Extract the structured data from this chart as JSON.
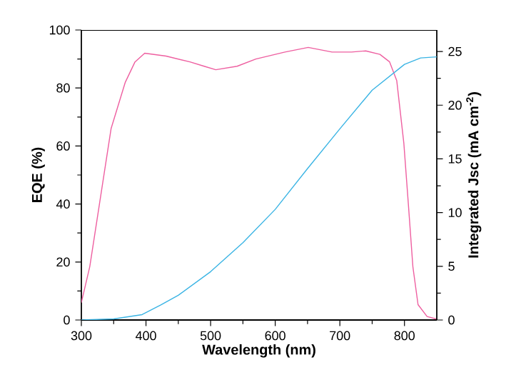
{
  "chart_data": {
    "type": "line",
    "xlabel": "Wavelength (nm)",
    "ylabel": "EQE (%)",
    "y2label": "Integrated Jsc (mA cm$^{-2}$)",
    "xlim": [
      300,
      850
    ],
    "xticks": [
      300,
      400,
      500,
      600,
      700,
      800
    ],
    "ylim": [
      0,
      100
    ],
    "yticks": [
      0,
      20,
      40,
      60,
      80,
      100
    ],
    "y2lim": [
      0,
      27
    ],
    "y2ticks": [
      0,
      5,
      10,
      15,
      20,
      25
    ],
    "marker": "none",
    "line_style": "solid",
    "series": [
      {
        "color": "#ee5fa0",
        "x": [
          300,
          313,
          328,
          346,
          368,
          383,
          398,
          431,
          468,
          490,
          508,
          541,
          570,
          615,
          651,
          688,
          718,
          740,
          762,
          777,
          788,
          799,
          806,
          813,
          821,
          835,
          850
        ],
        "values": [
          6,
          18.4,
          40,
          66,
          82,
          89,
          92,
          91,
          89,
          87.5,
          86.3,
          87.5,
          90,
          92.4,
          94,
          92.4,
          92.4,
          92.8,
          91.6,
          89,
          82.6,
          61,
          40,
          18.4,
          5.3,
          1.2,
          0.3
        ]
      },
      {
        "color": "#3ab4e4",
        "axis": "y2",
        "x": [
          300,
          350,
          394,
          423,
          450,
          500,
          550,
          600,
          650,
          700,
          750,
          800,
          825,
          850
        ],
        "values": [
          0,
          0.1,
          0.5,
          1.4,
          2.3,
          4.5,
          7.2,
          10.3,
          14.1,
          17.8,
          21.4,
          23.8,
          24.4,
          24.5
        ]
      }
    ]
  }
}
